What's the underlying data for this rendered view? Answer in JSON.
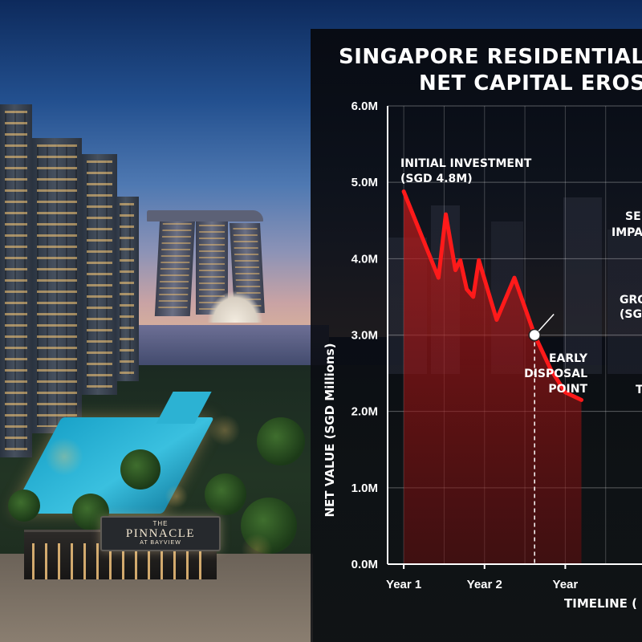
{
  "photo": {
    "sign": {
      "line1": "THE",
      "line2": "PINNACLE",
      "line3": "AT BAYVIEW"
    }
  },
  "chart_data": {
    "type": "line",
    "title_line1": "SINGAPORE RESIDENTIAL P",
    "title_line2": "NET CAPITAL EROSI",
    "ylabel": "NET VALUE (SGD Millions)",
    "xlabel": "TIMELINE (",
    "ylim": [
      0,
      6
    ],
    "yticks": [
      "0.0M",
      "1.0M",
      "2.0M",
      "3.0M",
      "4.0M",
      "5.0M",
      "6.0M"
    ],
    "xticks": [
      {
        "x": 1,
        "label": "Year 1"
      },
      {
        "x": 2,
        "label": "Year 2"
      },
      {
        "x": 3,
        "label": "Year"
      }
    ],
    "xlim": [
      0.8,
      3.95
    ],
    "grid": true,
    "line_color": "#ff1a1a",
    "fill_color": "#b01818",
    "series": [
      {
        "points": [
          [
            1.0,
            4.88
          ],
          [
            1.43,
            3.75
          ],
          [
            1.52,
            4.58
          ],
          [
            1.64,
            3.85
          ],
          [
            1.7,
            3.98
          ],
          [
            1.78,
            3.6
          ],
          [
            1.86,
            3.5
          ],
          [
            1.93,
            3.98
          ],
          [
            2.15,
            3.2
          ],
          [
            2.37,
            3.75
          ],
          [
            2.62,
            3.0
          ],
          [
            2.82,
            2.55
          ],
          [
            3.0,
            2.25
          ],
          [
            3.2,
            2.15
          ]
        ]
      }
    ],
    "annotations": [
      {
        "lines": [
          "INITIAL INVESTMENT",
          "(SGD 4.8M)"
        ],
        "x": 1.0,
        "y": 4.88
      },
      {
        "lines": [
          "EARLY",
          "DISPOSAL",
          "POINT"
        ],
        "x": 2.62,
        "y": 3.0
      },
      {
        "lines": [
          "GRO",
          "(SG"
        ],
        "x": 2.62,
        "y": 3.0
      },
      {
        "lines": [
          "SE"
        ]
      },
      {
        "lines": [
          "IMPA"
        ]
      },
      {
        "lines": [
          "T"
        ]
      }
    ],
    "marker": {
      "x": 2.62,
      "y": 3.0
    }
  }
}
